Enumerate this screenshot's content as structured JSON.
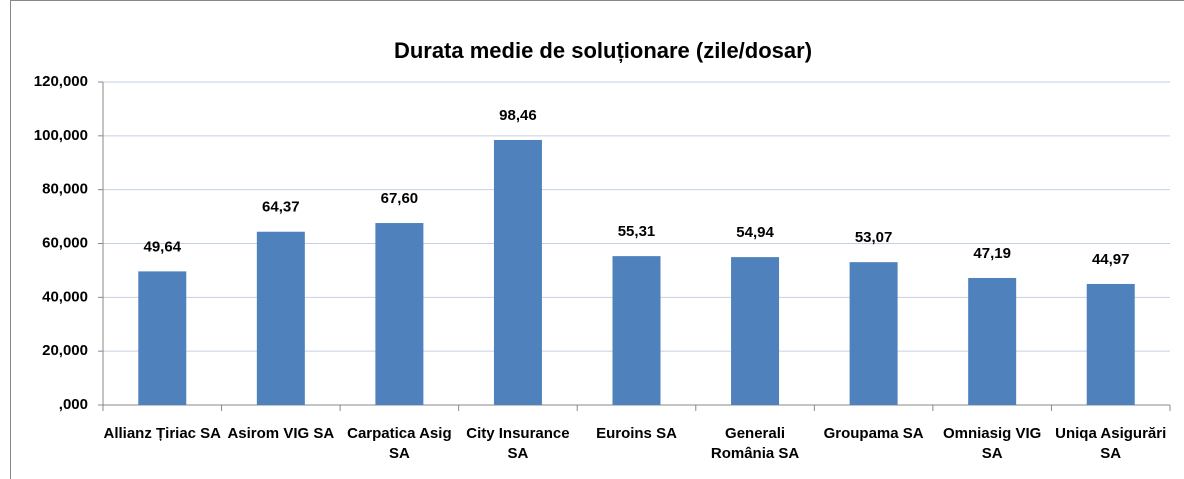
{
  "chart_data": {
    "type": "bar",
    "title": "Durata medie de soluționare (zile/dosar)",
    "categories": [
      "Allianz Țiriac SA",
      "Asirom VIG SA",
      "Carpatica Asig SA",
      "City Insurance SA",
      "Euroins SA",
      "Generali România SA",
      "Groupama SA",
      "Omniasig VIG SA",
      "Uniqa Asigurări SA"
    ],
    "values": [
      49.64,
      64.37,
      67.6,
      98.46,
      55.31,
      54.94,
      53.07,
      47.19,
      44.97
    ],
    "value_labels": [
      "49,64",
      "64,37",
      "67,60",
      "98,46",
      "55,31",
      "54,94",
      "53,07",
      "47,19",
      "44,97"
    ],
    "color": "#4f81bd",
    "ylim": [
      0,
      120
    ],
    "yticks": [
      {
        "value": 0,
        "label": ",000"
      },
      {
        "value": 20,
        "label": "20,000"
      },
      {
        "value": 40,
        "label": "40,000"
      },
      {
        "value": 60,
        "label": "60,000"
      },
      {
        "value": 80,
        "label": "80,000"
      },
      {
        "value": 100,
        "label": "100,000"
      },
      {
        "value": 120,
        "label": "120,000"
      }
    ],
    "grid": true
  }
}
